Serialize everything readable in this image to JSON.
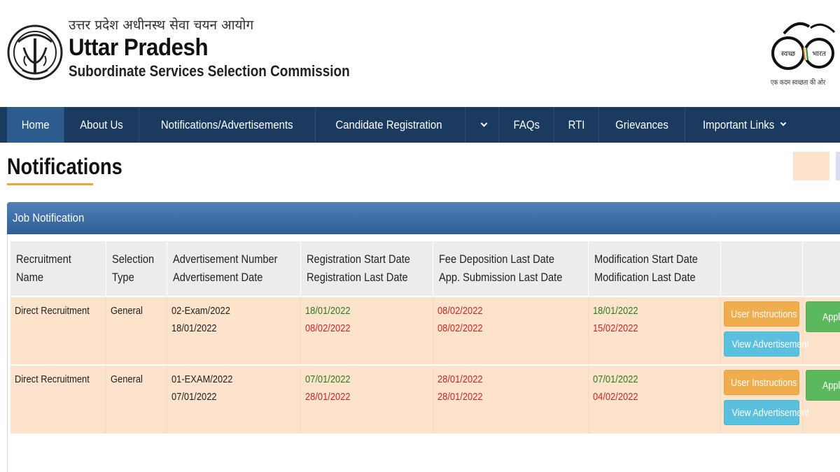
{
  "header": {
    "hindi_title": "उत्तर प्रदेश अधीनस्थ सेवा चयन आयोग",
    "title": "Uttar Pradesh",
    "subtitle": "Subordinate Services Selection Commission",
    "swachh_left": "स्वच्छ",
    "swachh_right": "भारत",
    "swachh_tagline": "एक कदम स्वच्छता की ओर"
  },
  "nav": {
    "items": [
      {
        "label": "Home",
        "active": true
      },
      {
        "label": "About Us"
      },
      {
        "label": "Notifications/Advertisements"
      },
      {
        "label": "Candidate Registration"
      },
      {
        "label": ""
      },
      {
        "label": "FAQs"
      },
      {
        "label": "RTI"
      },
      {
        "label": "Grievances"
      },
      {
        "label": "Important Links"
      }
    ]
  },
  "page": {
    "title": "Notifications"
  },
  "panel": {
    "title": "Job Notification"
  },
  "table": {
    "headers": [
      [
        "Recruitment",
        "Name"
      ],
      [
        "Selection",
        "Type"
      ],
      [
        "Advertisement Number",
        "Advertisement Date"
      ],
      [
        "Registration Start Date",
        "Registration Last Date"
      ],
      [
        "Fee Deposition Last Date",
        "App. Submission Last Date"
      ],
      [
        "Modification Start Date",
        "Modification Last Date"
      ],
      [
        "",
        ""
      ],
      [
        "",
        ""
      ]
    ],
    "rows": [
      {
        "name": "Direct Recruitment",
        "type": "General",
        "adv_number": "02-Exam/2022",
        "adv_date": "18/01/2022",
        "reg_start": "18/01/2022",
        "reg_last": "08/02/2022",
        "fee_last": "08/02/2022",
        "sub_last": "08/02/2022",
        "mod_start": "18/01/2022",
        "mod_last": "15/02/2022",
        "instr_label": "User Instructions",
        "view_label": "View Advertisement",
        "apply_label": "Apply"
      },
      {
        "name": "Direct Recruitment",
        "type": "General",
        "adv_number": "01-EXAM/2022",
        "adv_date": "07/01/2022",
        "reg_start": "07/01/2022",
        "reg_last": "28/01/2022",
        "fee_last": "28/01/2022",
        "sub_last": "28/01/2022",
        "mod_start": "07/01/2022",
        "mod_last": "04/02/2022",
        "instr_label": "User Instructions",
        "view_label": "View Advertisement",
        "apply_label": "Apply"
      }
    ]
  },
  "colors": {
    "navbar": "#1b3a5f",
    "nav_active": "#2c5b8e",
    "row_bg": "#fde3cc",
    "date_green": "#2e7d1a",
    "date_red": "#c62828",
    "instr_button": "#f0ad4e",
    "view_button": "#5bc0de",
    "apply_button": "#5cb85c"
  }
}
